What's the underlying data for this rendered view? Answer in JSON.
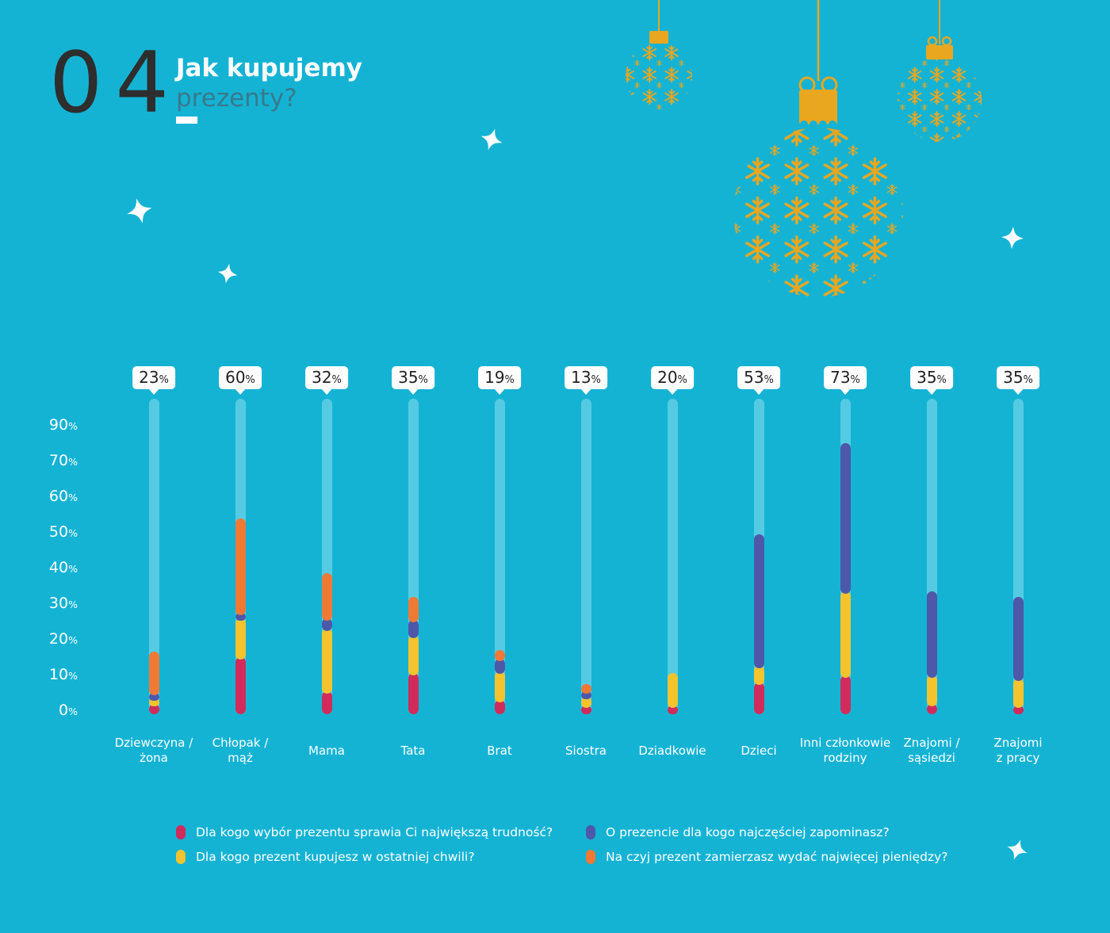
{
  "header": {
    "number": "04",
    "title_line1": "Jak kupujemy",
    "title_line2": "prezenty?"
  },
  "palette": {
    "background": "#14B3D4",
    "bar_track": "#55CBE3",
    "ornament_gold": "#E9A61F",
    "number_color": "#2E2E2E",
    "subtitle_color": "#39798C",
    "text_color": "#FFFFFF",
    "bubble_background": "#FFFFFF",
    "bubble_text": "#222222"
  },
  "chart_data": {
    "type": "bar",
    "variant": "stacked-lollipop",
    "title": "Jak kupujemy prezenty?",
    "categories": [
      "Dziewczyna / żona",
      "Chłopak / mąż",
      "Mama",
      "Tata",
      "Brat",
      "Siostra",
      "Dziadkowie",
      "Dzieci",
      "Inni członkowie rodziny",
      "Znajomi / sąsiedzi",
      "Znajomi z pracy"
    ],
    "category_lines": [
      [
        "Dziewczyna /",
        "żona"
      ],
      [
        "Chłopak /",
        "mąż"
      ],
      [
        "Mama"
      ],
      [
        "Tata"
      ],
      [
        "Brat"
      ],
      [
        "Siostra"
      ],
      [
        "Dziadkowie"
      ],
      [
        "Dzieci"
      ],
      [
        "Inni członkowie",
        "rodziny"
      ],
      [
        "Znajomi /",
        "sąsiedzi"
      ],
      [
        "Znajomi",
        "z pracy"
      ]
    ],
    "bubble_values": [
      23,
      60,
      32,
      35,
      19,
      13,
      20,
      53,
      73,
      35,
      35
    ],
    "bubble_suffix": "%",
    "y_axis_labels": [
      90,
      70,
      60,
      50,
      40,
      30,
      20,
      10,
      0
    ],
    "y_suffix": "%",
    "ylim": [
      0,
      88
    ],
    "grid": false,
    "legend_position": "bottom",
    "series": [
      {
        "name": "Dla kogo wybór prezentu sprawia Ci największą trudność?",
        "color": "#D12B5B",
        "values": [
          3,
          16,
          6.5,
          11.5,
          4,
          2.5,
          2.5,
          9,
          11,
          3,
          2.5
        ]
      },
      {
        "name": "Dla kogo prezent kupujesz w ostatniej chwili?",
        "color": "#F4C32D",
        "values": [
          1.5,
          11,
          17.5,
          10.5,
          8,
          2.5,
          9,
          4.5,
          23.5,
          8,
          7.5
        ]
      },
      {
        "name": "O prezencie dla kogo najczęściej zapominasz?",
        "color": "#4E58A8",
        "values": [
          1.5,
          1.5,
          3,
          4.5,
          3.5,
          1.5,
          0,
          37,
          41.5,
          23.5,
          23
        ]
      },
      {
        "name": "Na czyj prezent zamierzasz wydać najwięcej pieniędzy?",
        "color": "#F07936",
        "values": [
          11.5,
          26.5,
          12.5,
          6.5,
          2.5,
          2,
          0,
          0,
          0,
          0,
          0
        ]
      }
    ]
  },
  "legend": {
    "items": [
      {
        "color": "#D12B5B",
        "label": "Dla kogo wybór prezentu sprawia Ci największą trudność?"
      },
      {
        "color": "#F4C32D",
        "label": "Dla kogo prezent kupujesz w ostatniej chwili?"
      },
      {
        "color": "#4E58A8",
        "label": "O prezencie dla kogo najczęściej zapominasz?"
      },
      {
        "color": "#F07936",
        "label": "Na czyj prezent zamierzasz wydać najwięcej pieniędzy?"
      }
    ]
  }
}
